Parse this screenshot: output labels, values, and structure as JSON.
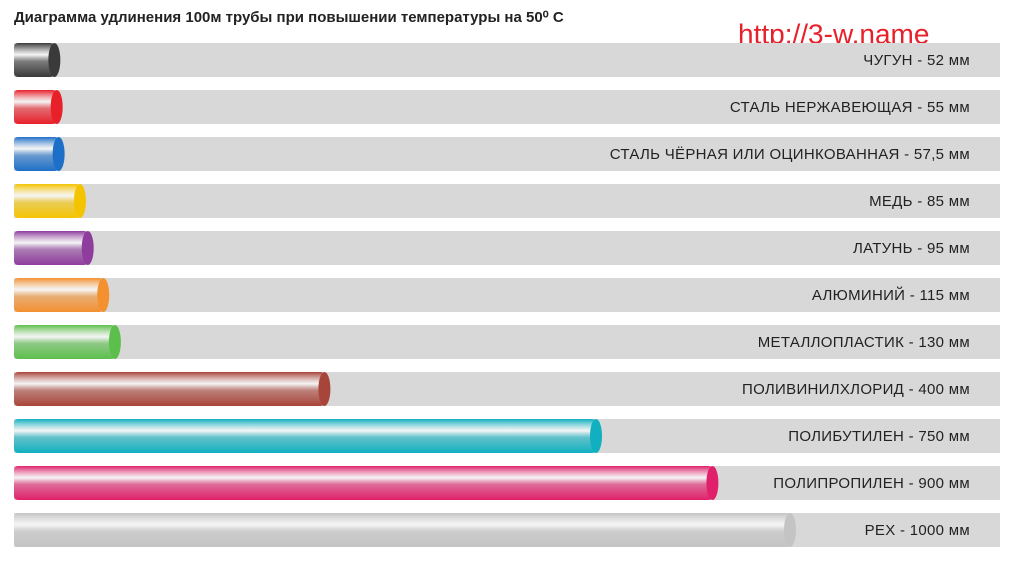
{
  "chart_data": {
    "type": "hbar",
    "title": "Диаграмма  удлинения 100м трубы при повышении температуры на 50⁰ С",
    "watermark": "http://3-w.name",
    "categories": [
      "ЧУГУН - 52 мм",
      "СТАЛЬ НЕРЖАВЕЮЩАЯ - 55 мм",
      "СТАЛЬ ЧЁРНАЯ ИЛИ ОЦИНКОВАННАЯ - 57,5 мм",
      "МЕДЬ - 85 мм",
      "ЛАТУНЬ - 95 мм",
      "АЛЮМИНИЙ - 115 мм",
      "МЕТАЛЛОПЛАСТИК - 130 мм",
      "ПОЛИВИНИЛХЛОРИД - 400 мм",
      "ПОЛИБУТИЛЕН - 750 мм",
      "ПОЛИПРОПИЛЕН - 900 мм",
      "PEX - 1000 мм"
    ],
    "values": [
      52,
      55,
      57.5,
      85,
      95,
      115,
      130,
      400,
      750,
      900,
      1000
    ],
    "colors": [
      "#3a3a3a",
      "#e8202a",
      "#1e6fc8",
      "#f5c400",
      "#8e3d9c",
      "#f39030",
      "#5cbf4c",
      "#a8453a",
      "#10b0c0",
      "#e0206a",
      "#c4c4c4"
    ],
    "xlim": [
      0,
      1000
    ]
  }
}
